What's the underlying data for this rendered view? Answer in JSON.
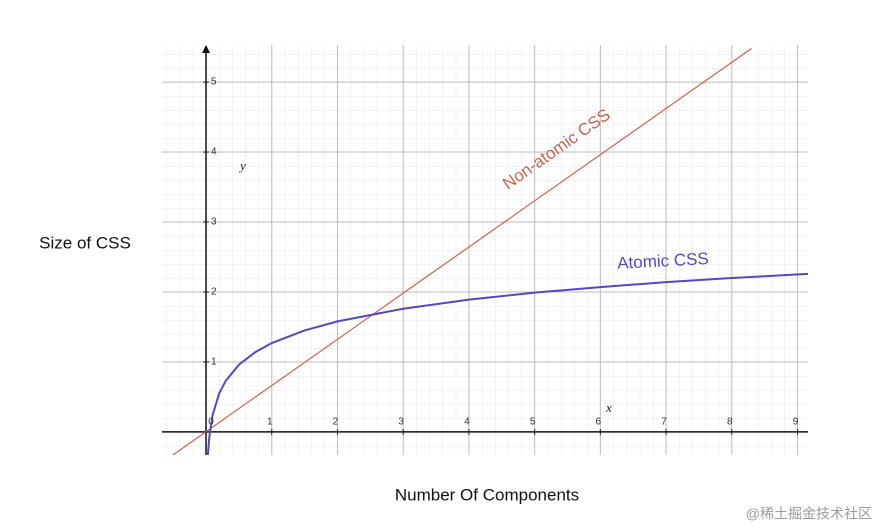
{
  "chart_data": {
    "type": "line",
    "xlabel": "Number Of Components",
    "ylabel": "Size of CSS",
    "axis_letters": {
      "x": "x",
      "y": "y"
    },
    "watermark": "@稀土掘金技术社区",
    "xlim": [
      -0.67,
      9.16
    ],
    "ylim": [
      -0.33,
      5.53
    ],
    "xticks": [
      0,
      1,
      2,
      3,
      4,
      5,
      6,
      7,
      8,
      9
    ],
    "yticks": [
      1,
      2,
      3,
      4,
      5
    ],
    "grid": true,
    "series": [
      {
        "name": "Non-atomic CSS",
        "color": "#c9634a",
        "x": [
          -0.55,
          8.3
        ],
        "values": [
          -0.36,
          5.48
        ]
      },
      {
        "name": "Atomic CSS",
        "color": "#5548c8",
        "x": [
          0.027,
          0.05,
          0.1,
          0.2,
          0.3,
          0.5,
          0.75,
          1,
          1.5,
          2,
          3,
          4,
          5,
          6,
          7,
          8,
          9.2
        ],
        "values": [
          -0.34,
          -0.07,
          0.24,
          0.55,
          0.73,
          0.96,
          1.14,
          1.27,
          1.45,
          1.58,
          1.76,
          1.89,
          1.99,
          2.07,
          2.14,
          2.2,
          2.26
        ]
      }
    ]
  }
}
